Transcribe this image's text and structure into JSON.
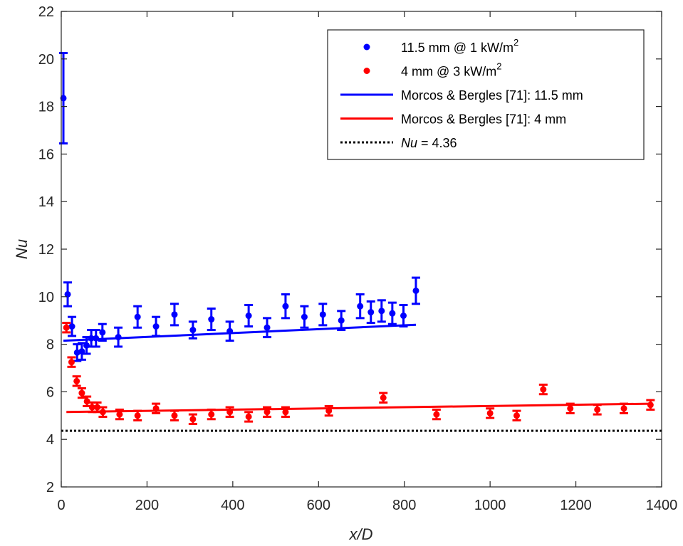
{
  "chart_data": {
    "type": "scatter",
    "xlabel": "x/D",
    "ylabel": "Nu",
    "xlim": [
      0,
      1400
    ],
    "ylim": [
      2,
      22
    ],
    "xticks": [
      "0",
      "200",
      "400",
      "600",
      "800",
      "1000",
      "1200",
      "1400"
    ],
    "yticks": [
      "2",
      "4",
      "6",
      "8",
      "10",
      "12",
      "14",
      "16",
      "18",
      "20",
      "22"
    ],
    "grid": false,
    "legend_position": "top-right",
    "series": [
      {
        "name": "11.5 mm @ 1 kW/m²",
        "kind": "points-with-errorbars",
        "color": "#0000ff",
        "x": [
          5,
          15,
          25,
          37,
          48,
          59,
          70,
          81,
          96,
          133,
          178,
          221,
          264,
          307,
          350,
          393,
          437,
          480,
          523,
          567,
          610,
          653,
          697,
          722,
          747,
          772,
          798,
          827
        ],
        "y": [
          18.35,
          10.1,
          8.75,
          7.65,
          7.7,
          7.95,
          8.25,
          8.25,
          8.5,
          8.3,
          9.15,
          8.75,
          9.25,
          8.6,
          9.05,
          8.55,
          9.2,
          8.7,
          9.6,
          9.15,
          9.25,
          9.0,
          9.6,
          9.35,
          9.4,
          9.3,
          9.2,
          10.25
        ],
        "err": [
          1.9,
          0.5,
          0.4,
          0.35,
          0.35,
          0.35,
          0.35,
          0.35,
          0.35,
          0.4,
          0.45,
          0.4,
          0.45,
          0.35,
          0.45,
          0.4,
          0.45,
          0.4,
          0.5,
          0.45,
          0.45,
          0.4,
          0.5,
          0.45,
          0.45,
          0.45,
          0.45,
          0.55
        ]
      },
      {
        "name": "4 mm @ 3 kW/m²",
        "kind": "points-with-errorbars",
        "color": "#ff0000",
        "x": [
          12,
          24,
          36,
          48,
          60,
          72,
          84,
          97,
          136,
          178,
          221,
          264,
          307,
          350,
          393,
          437,
          480,
          523,
          624,
          751,
          875,
          1000,
          1062,
          1124,
          1187,
          1250,
          1312,
          1374
        ],
        "y": [
          8.7,
          7.25,
          6.45,
          5.95,
          5.6,
          5.35,
          5.35,
          5.15,
          5.05,
          5.0,
          5.3,
          5.0,
          4.85,
          5.05,
          5.15,
          4.95,
          5.15,
          5.15,
          5.2,
          5.75,
          5.05,
          5.1,
          5.0,
          6.1,
          5.3,
          5.25,
          5.3,
          5.45
        ],
        "err": [
          0.2,
          0.2,
          0.2,
          0.2,
          0.2,
          0.2,
          0.2,
          0.2,
          0.2,
          0.2,
          0.2,
          0.2,
          0.2,
          0.2,
          0.2,
          0.2,
          0.2,
          0.2,
          0.2,
          0.2,
          0.2,
          0.2,
          0.2,
          0.2,
          0.2,
          0.2,
          0.2,
          0.2
        ]
      },
      {
        "name": "Morcos & Bergles [71]: 11.5 mm",
        "kind": "line",
        "color": "#0000ff",
        "x": [
          5,
          827
        ],
        "y": [
          8.15,
          8.82
        ]
      },
      {
        "name": "Morcos & Bergles [71]: 4 mm",
        "kind": "line",
        "color": "#ff0000",
        "x": [
          12,
          1374
        ],
        "y": [
          5.15,
          5.5
        ]
      },
      {
        "name": "Nu = 4.36",
        "kind": "dotted-line",
        "color": "#000000",
        "x": [
          0,
          1400
        ],
        "y": [
          4.36,
          4.36
        ]
      }
    ],
    "legend": [
      {
        "base": "11.5 mm @ 1 kW/m",
        "sup": "2",
        "italic": "",
        "series": 0,
        "marker": "dot",
        "color": "#0000ff"
      },
      {
        "base": "4 mm @ 3 kW/m",
        "sup": "2",
        "italic": "",
        "series": 1,
        "marker": "dot",
        "color": "#ff0000"
      },
      {
        "base": "Morcos & Bergles [71]: 11.5 mm",
        "sup": "",
        "italic": "",
        "series": 2,
        "marker": "line",
        "color": "#0000ff"
      },
      {
        "base": " = 4.36",
        "sup": "",
        "italic": "Nu",
        "series": 4,
        "marker": "dotted",
        "color": "#000000",
        "order": 4
      },
      {
        "base": "Morcos & Bergles [71]: 4 mm",
        "sup": "",
        "italic": "",
        "series": 3,
        "marker": "line",
        "color": "#ff0000",
        "order": 3
      }
    ]
  }
}
